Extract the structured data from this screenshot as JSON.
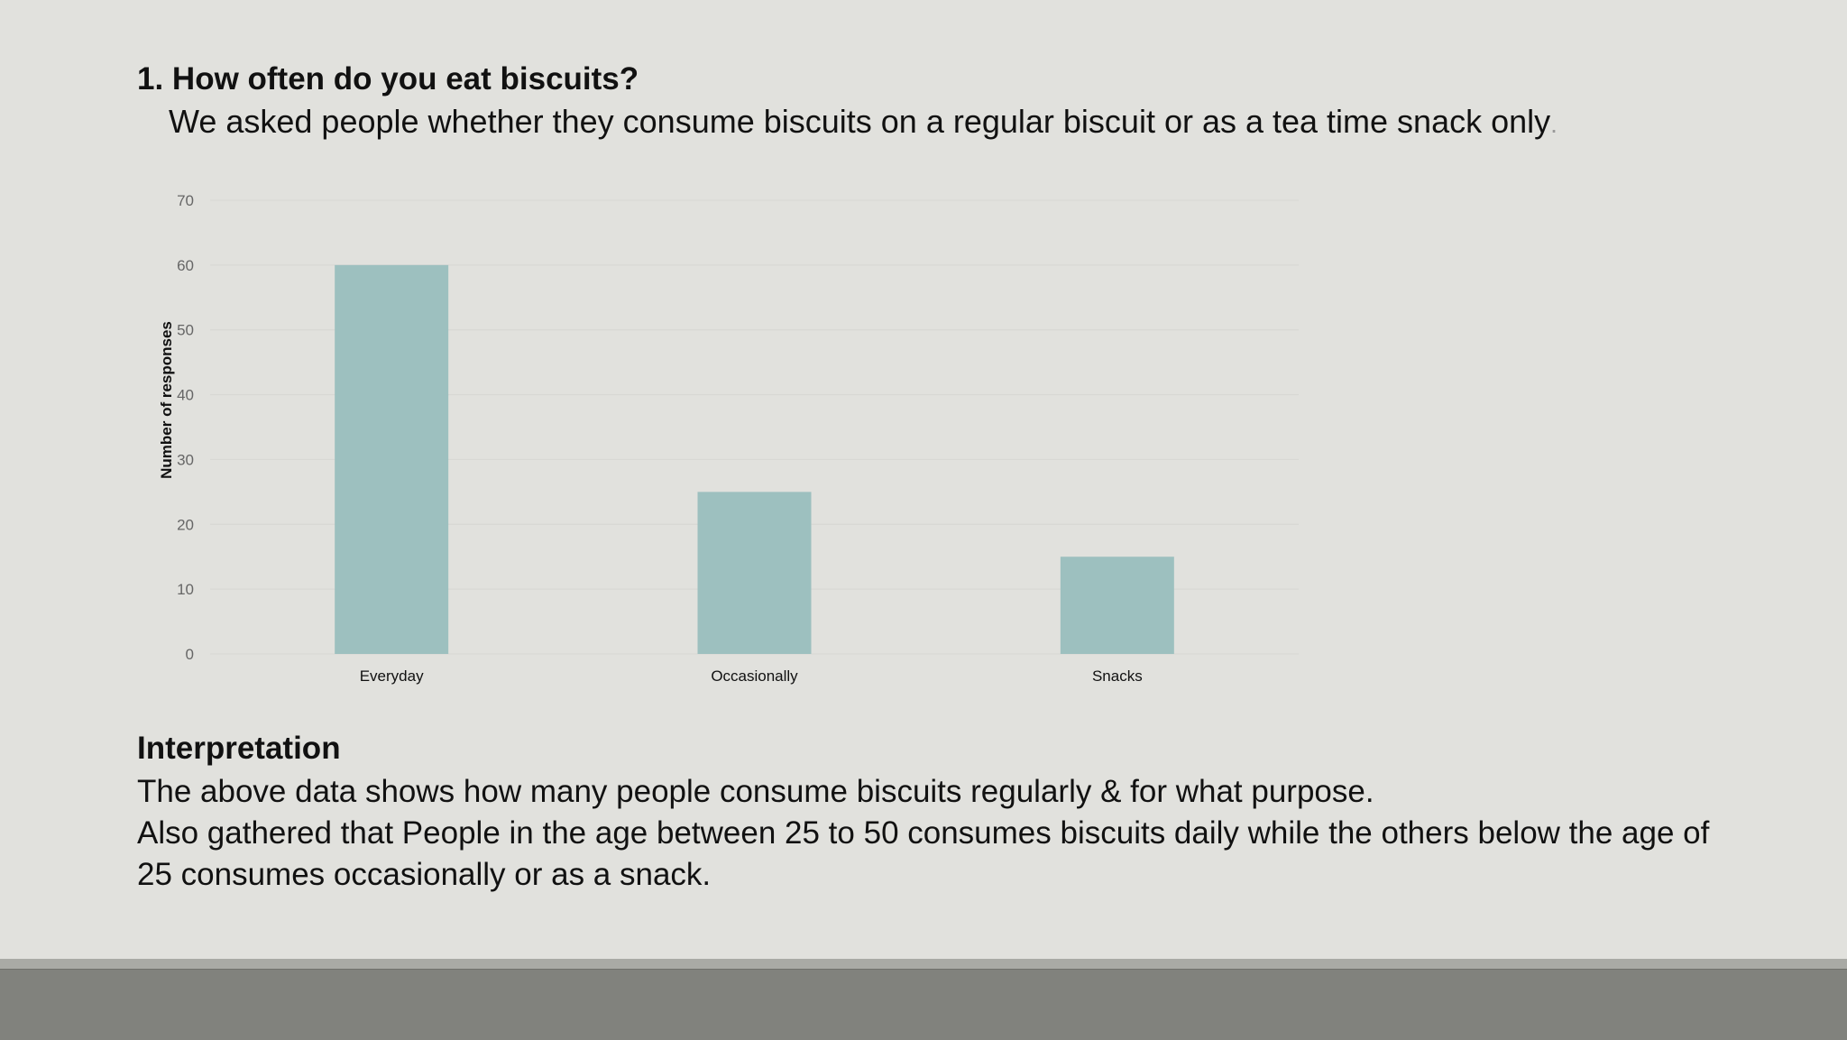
{
  "slide": {
    "question": "1. How often do you eat biscuits?",
    "subtitle": "We asked people whether they consume biscuits on a regular biscuit or as a tea time snack only",
    "subtitle_end": "."
  },
  "interpretation": {
    "title": "Interpretation",
    "lines": [
      "The above data shows how many people consume biscuits regularly & for what purpose.",
      "Also gathered that People in the age between 25 to 50 consumes biscuits daily while the others below the age of",
      "25 consumes occasionally or as a snack."
    ]
  },
  "chart_data": {
    "type": "bar",
    "categories": [
      "Everyday",
      "Occasionally",
      "Snacks"
    ],
    "values": [
      60,
      25,
      15
    ],
    "title": "",
    "xlabel": "",
    "ylabel": "Number of responses",
    "ylim": [
      0,
      70
    ],
    "yticks": [
      0,
      10,
      20,
      30,
      40,
      50,
      60,
      70
    ],
    "grid": true,
    "legend": "none",
    "bar_color": "#9dc0bf",
    "grid_color": "#d6d6d2"
  },
  "colors": {
    "background": "#e1e1dd",
    "footer": "#81827d",
    "footer_stripe": "#a9aaa5"
  }
}
